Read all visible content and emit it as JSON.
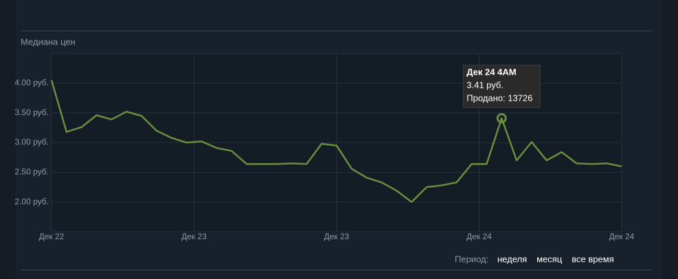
{
  "chart_data": {
    "type": "line",
    "ylabel": "Медиана цен",
    "x": [
      0,
      1,
      2,
      3,
      4,
      5,
      6,
      7,
      8,
      9,
      10,
      11,
      12,
      13,
      14,
      15,
      16,
      17,
      18,
      19,
      20,
      21,
      22,
      23,
      24,
      25,
      26,
      27,
      28,
      29,
      30,
      31,
      32,
      33,
      34,
      35,
      36,
      37,
      38
    ],
    "series": [
      {
        "color": "#688f3e",
        "values": [
          4.05,
          3.18,
          3.26,
          3.46,
          3.39,
          3.52,
          3.45,
          3.2,
          3.08,
          3.0,
          3.02,
          2.91,
          2.86,
          2.64,
          2.64,
          2.64,
          2.65,
          2.64,
          2.98,
          2.95,
          2.56,
          2.41,
          2.33,
          2.19,
          2.0,
          2.25,
          2.28,
          2.33,
          2.64,
          2.64,
          3.41,
          2.7,
          3.01,
          2.7,
          2.84,
          2.65,
          2.64,
          2.65,
          2.6
        ]
      }
    ],
    "xlim": [
      0,
      38
    ],
    "xticks": [
      {
        "value": 0,
        "label": "Дек 22"
      },
      {
        "value": 9.5,
        "label": "Дек 23"
      },
      {
        "value": 19,
        "label": "Дек 23"
      },
      {
        "value": 28.5,
        "label": "Дек 24"
      },
      {
        "value": 38,
        "label": "Дек 24"
      }
    ],
    "ylim": [
      1.5,
      4.5
    ],
    "yticks": [
      {
        "value": 2,
        "label": "2.00 руб."
      },
      {
        "value": 2.5,
        "label": "2.50 руб."
      },
      {
        "value": 3,
        "label": "3.00 руб."
      },
      {
        "value": 3.5,
        "label": "3.50 руб."
      },
      {
        "value": 4,
        "label": "4.00 руб."
      }
    ],
    "grid": true,
    "tooltip": {
      "x": 30,
      "lines": [
        "Дек 24 4AM",
        "3.41 руб.",
        "Продано: 13726"
      ]
    }
  },
  "period_selector": {
    "label": "Период:",
    "options": [
      "неделя",
      "месяц",
      "все время"
    ]
  }
}
